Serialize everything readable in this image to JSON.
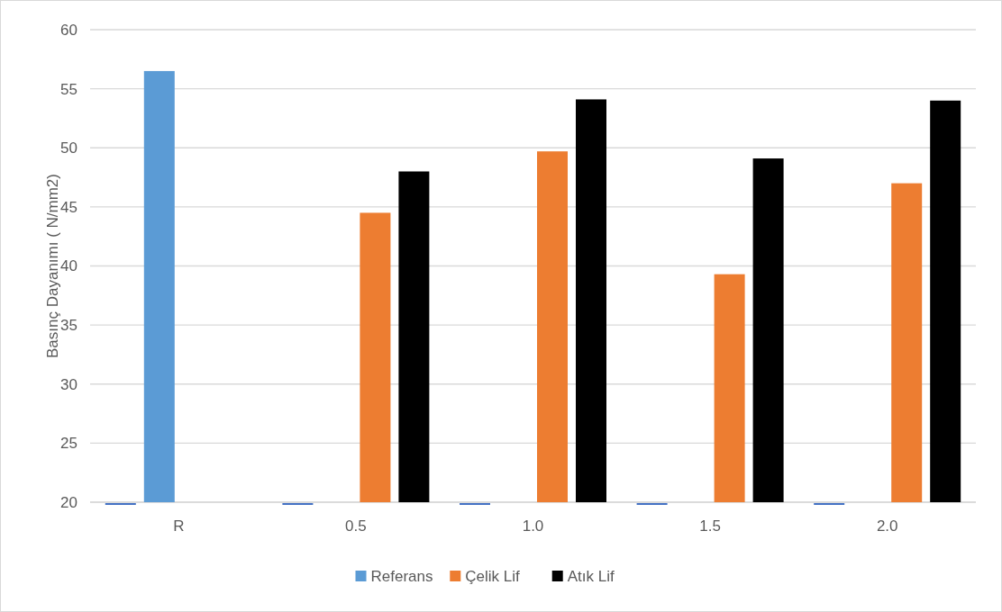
{
  "chart_data": {
    "type": "bar",
    "ylabel": "Basınç  Dayanımı ( N/mm2)",
    "categories": [
      "R",
      "0.5",
      "1.0",
      "1.5",
      "2.0"
    ],
    "series": [
      {
        "color": "#4472c4",
        "values": [
          20,
          20,
          20,
          20,
          20
        ]
      },
      {
        "name": "Referans",
        "color": "#5b9bd5",
        "values": [
          56.5,
          null,
          null,
          null,
          null
        ]
      },
      {
        "name": "Çelik Lif",
        "color": "#ed7d31",
        "values": [
          null,
          44.5,
          49.7,
          39.3,
          47.0
        ]
      },
      {
        "name": "Atık Lif",
        "color": "#000000",
        "values": [
          null,
          48.0,
          54.1,
          49.1,
          54.0
        ]
      }
    ],
    "ylim": [
      20,
      60
    ],
    "yticks": [
      20,
      25,
      30,
      35,
      40,
      45,
      50,
      55,
      60
    ],
    "grid": "y",
    "legend": "bottom"
  }
}
